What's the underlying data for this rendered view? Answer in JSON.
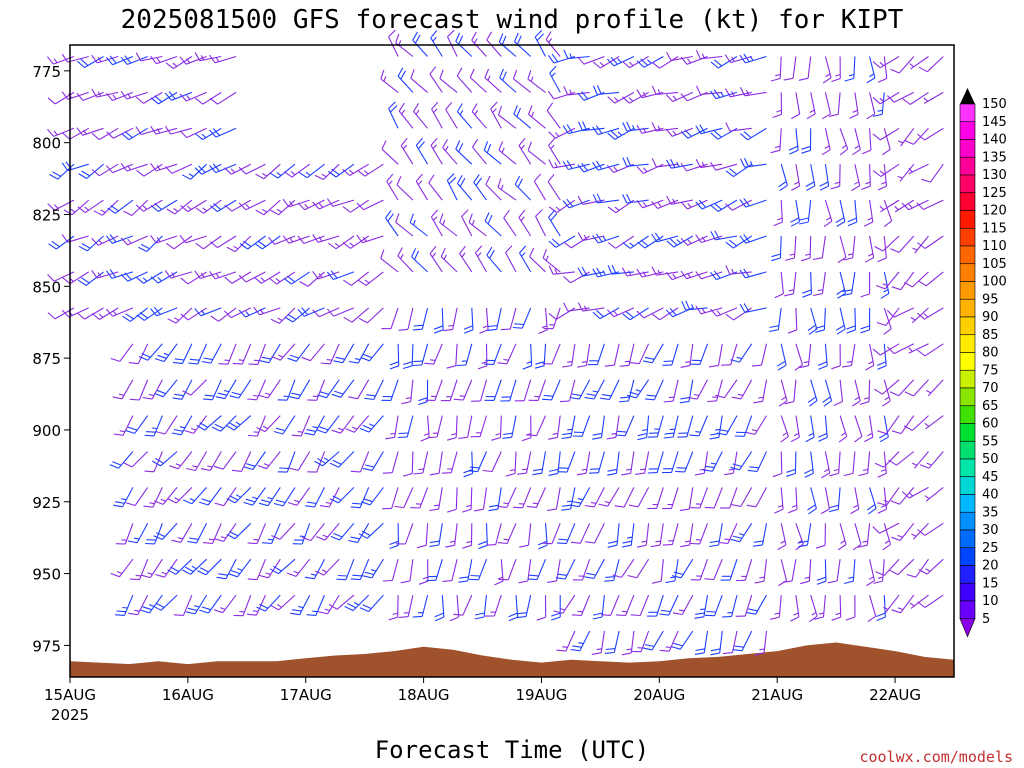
{
  "title": "2025081500 GFS forecast wind profile (kt) for KIPT",
  "xlabel": "Forecast Time (UTC)",
  "credit": "coolwx.com/models",
  "chart_data": {
    "type": "wind_barb_profile",
    "title": "2025081500 GFS forecast wind profile (kt) for KIPT",
    "xlabel": "Forecast Time (UTC)",
    "ylabel": "",
    "units": "kt",
    "x_ticks": [
      "15AUG",
      "16AUG",
      "17AUG",
      "18AUG",
      "19AUG",
      "20AUG",
      "21AUG",
      "22AUG"
    ],
    "x_year": "2025",
    "x_range_days": [
      0,
      7.5
    ],
    "y_ticks": [
      775,
      800,
      825,
      850,
      875,
      900,
      925,
      950,
      975
    ],
    "y_range_hpa": [
      766,
      986
    ],
    "y_axis": "pressure, inverted",
    "step_hours": 3,
    "colorbar": {
      "levels": [
        5,
        10,
        15,
        20,
        25,
        30,
        35,
        40,
        45,
        50,
        55,
        60,
        65,
        70,
        75,
        80,
        85,
        90,
        95,
        100,
        105,
        110,
        115,
        120,
        125,
        130,
        135,
        140,
        145,
        150
      ],
      "colors": [
        "#8a00e6",
        "#6a00ff",
        "#3f00ff",
        "#1f1fff",
        "#0046ff",
        "#006bff",
        "#0090ff",
        "#00b8ff",
        "#00d6d6",
        "#00e6a8",
        "#00e070",
        "#00e030",
        "#40e000",
        "#8ae600",
        "#c8f000",
        "#ffff00",
        "#ffea00",
        "#ffd000",
        "#ffb300",
        "#ff9900",
        "#ff8000",
        "#ff6600",
        "#ff4000",
        "#ff1a00",
        "#ff0030",
        "#ff0066",
        "#ff0099",
        "#ff00cc",
        "#ff00e6",
        "#ff33ff"
      ]
    },
    "barb_color_light": "#8a2be2",
    "barb_color_strong": "#1f3fff",
    "terrain_color": "#a0522d",
    "surface_pressure": [
      [
        0,
        980.5
      ],
      [
        0.5,
        981.5
      ],
      [
        0.75,
        980.5
      ],
      [
        1,
        981.5
      ],
      [
        1.25,
        980.5
      ],
      [
        1.75,
        980.5
      ],
      [
        2,
        979.5
      ],
      [
        2.25,
        978.5
      ],
      [
        2.5,
        978
      ],
      [
        2.75,
        977
      ],
      [
        3,
        975.5
      ],
      [
        3.25,
        976.5
      ],
      [
        3.5,
        978.5
      ],
      [
        3.75,
        980
      ],
      [
        4,
        981
      ],
      [
        4.25,
        980
      ],
      [
        4.5,
        980.5
      ],
      [
        4.75,
        981
      ],
      [
        5,
        980.5
      ],
      [
        5.25,
        979.5
      ],
      [
        5.5,
        979
      ],
      [
        5.75,
        978
      ],
      [
        6,
        977
      ],
      [
        6.25,
        975
      ],
      [
        6.5,
        974
      ],
      [
        6.75,
        975.5
      ],
      [
        7,
        977
      ],
      [
        7.25,
        979
      ],
      [
        7.5,
        980
      ]
    ],
    "wind_regimes": [
      {
        "t0": 0,
        "t1": 1.4,
        "levels_hpa": [
          770,
          800
        ],
        "dir_deg": 250,
        "speed_kt": [
          10,
          20
        ]
      },
      {
        "t0": 0,
        "t1": 2.7,
        "levels_hpa": [
          800,
          860
        ],
        "dir_deg": 240,
        "speed_kt": [
          10,
          20
        ]
      },
      {
        "t0": 0.4,
        "t1": 2.7,
        "levels_hpa": [
          860,
          960
        ],
        "dir_deg": 215,
        "speed_kt": [
          10,
          25
        ]
      },
      {
        "t0": 2.7,
        "t1": 4.2,
        "levels_hpa": [
          770,
          850
        ],
        "dir_deg": 320,
        "speed_kt": [
          10,
          20
        ]
      },
      {
        "t0": 2.7,
        "t1": 4.2,
        "levels_hpa": [
          850,
          960
        ],
        "dir_deg": 190,
        "speed_kt": [
          10,
          20
        ]
      },
      {
        "t0": 4.2,
        "t1": 5.9,
        "levels_hpa": [
          770,
          860
        ],
        "dir_deg": 250,
        "speed_kt": [
          10,
          25
        ]
      },
      {
        "t0": 4.2,
        "t1": 5.9,
        "levels_hpa": [
          860,
          970
        ],
        "dir_deg": 200,
        "speed_kt": [
          10,
          25
        ]
      },
      {
        "t0": 5.9,
        "t1": 7.0,
        "levels_hpa": [
          770,
          960
        ],
        "dir_deg": 175,
        "speed_kt": [
          10,
          20
        ]
      },
      {
        "t0": 7.0,
        "t1": 7.5,
        "levels_hpa": [
          770,
          960
        ],
        "dir_deg": 230,
        "speed_kt": [
          5,
          15
        ]
      }
    ]
  }
}
